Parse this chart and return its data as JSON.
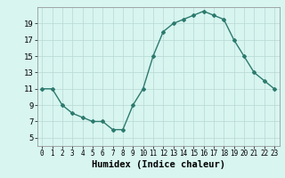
{
  "x": [
    0,
    1,
    2,
    3,
    4,
    5,
    6,
    7,
    8,
    9,
    10,
    11,
    12,
    13,
    14,
    15,
    16,
    17,
    18,
    19,
    20,
    21,
    22,
    23
  ],
  "y": [
    11,
    11,
    9,
    8,
    7.5,
    7,
    7,
    6,
    6,
    9,
    11,
    15,
    18,
    19,
    19.5,
    20,
    20.5,
    20,
    19.5,
    17,
    15,
    13,
    12,
    11
  ],
  "line_color": "#2d7a6e",
  "bg_color": "#d8f5f0",
  "grid_color": "#b8d8d4",
  "xlabel": "Humidex (Indice chaleur)",
  "xlabel_fontsize": 7.5,
  "ylim": [
    4,
    21
  ],
  "xlim": [
    -0.5,
    23.5
  ],
  "yticks": [
    5,
    7,
    9,
    11,
    13,
    15,
    17,
    19
  ],
  "xticks": [
    0,
    1,
    2,
    3,
    4,
    5,
    6,
    7,
    8,
    9,
    10,
    11,
    12,
    13,
    14,
    15,
    16,
    17,
    18,
    19,
    20,
    21,
    22,
    23
  ],
  "marker": "D",
  "marker_size": 2.0,
  "linewidth": 1.0
}
